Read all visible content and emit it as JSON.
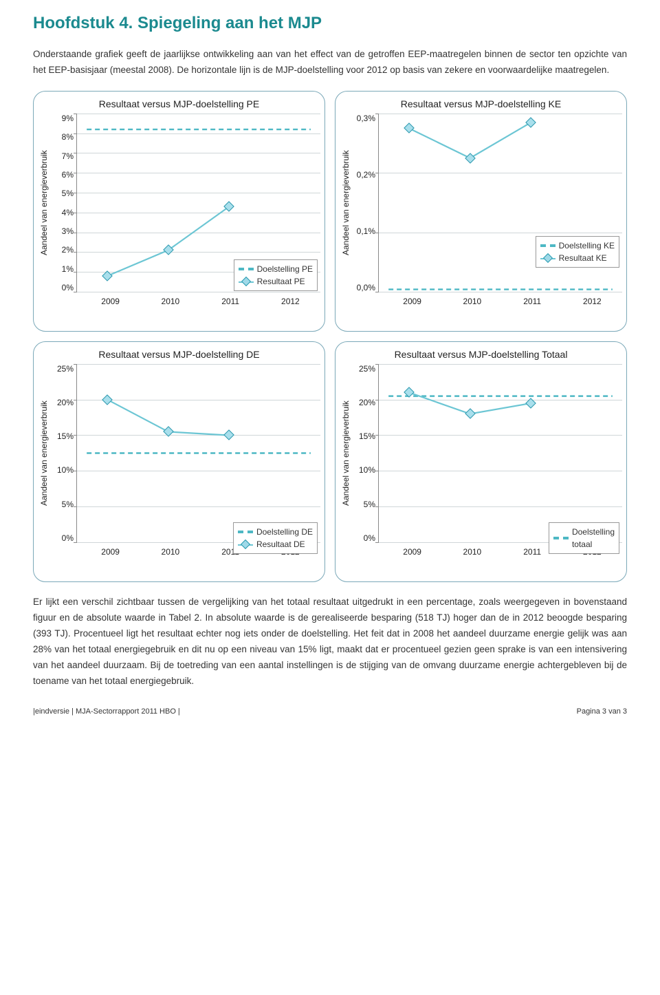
{
  "title": "Hoofdstuk 4. Spiegeling aan het MJP",
  "intro": "Onderstaande grafiek geeft de jaarlijkse ontwikkeling aan van het effect van de getroffen EEP-maatregelen binnen de sector ten opzichte van het EEP-basisjaar (meestal 2008). De horizontale lijn is de MJP-doelstelling voor 2012 op basis van zekere en voorwaardelijke maatregelen.",
  "outro": "Er lijkt een verschil zichtbaar tussen de vergelijking van het totaal resultaat uitgedrukt in een percentage, zoals weergegeven in bovenstaand figuur en de absolute waarde in Tabel 2. In absolute waarde is de gerealiseerde besparing (518 TJ) hoger dan de in 2012 beoogde besparing (393 TJ). Procentueel ligt het resultaat echter nog iets onder de doelstelling. Het feit dat in 2008 het aandeel duurzame energie gelijk was aan 28% van het totaal energiegebruik en dit nu op een niveau van 15% ligt, maakt dat er procentueel gezien geen sprake is van een intensivering van het aandeel duurzaam. Bij de toetreding van een aantal instellingen is de stijging van de omvang duurzame energie achtergebleven bij de toename van het totaal energiegebruik.",
  "ylabel": "Aandeel van energieverbruik",
  "charts": {
    "pe": {
      "title": "Resultaat versus MJP-doelstelling PE",
      "yticks": [
        "9%",
        "8%",
        "7%",
        "6%",
        "5%",
        "4%",
        "3%",
        "2%",
        "1%",
        "0%"
      ],
      "ymin": 0,
      "ymax": 9,
      "xyears": [
        "2009",
        "2010",
        "2011",
        "2012"
      ],
      "target": 8.2,
      "result_x": [
        "2009",
        "2010",
        "2011"
      ],
      "result_y": [
        0.8,
        2.1,
        4.3
      ],
      "legend": [
        "Doelstelling PE",
        "Resultaat PE"
      ],
      "colors": {
        "target": "#4db8c4",
        "line": "#6cc6d4",
        "marker_fill": "#a9dfec",
        "marker_stroke": "#2b97ad"
      }
    },
    "ke": {
      "title": "Resultaat versus MJP-doelstelling KE",
      "yticks": [
        "0,3%",
        "0,2%",
        "0,1%",
        "0,0%"
      ],
      "ymin": 0,
      "ymax": 0.3,
      "xyears": [
        "2009",
        "2010",
        "2011",
        "2012"
      ],
      "target": 0.004,
      "result_x": [
        "2009",
        "2010",
        "2011"
      ],
      "result_y": [
        0.275,
        0.225,
        0.285
      ],
      "legend": [
        "Doelstelling KE",
        "Resultaat KE"
      ],
      "colors": {
        "target": "#4db8c4",
        "line": "#6cc6d4",
        "marker_fill": "#a9dfec",
        "marker_stroke": "#2b97ad"
      }
    },
    "de": {
      "title": "Resultaat versus MJP-doelstelling DE",
      "yticks": [
        "25%",
        "20%",
        "15%",
        "10%",
        "5%",
        "0%"
      ],
      "ymin": 0,
      "ymax": 25,
      "xyears": [
        "2009",
        "2010",
        "2011",
        "2012"
      ],
      "target": 12.5,
      "result_x": [
        "2009",
        "2010",
        "2011"
      ],
      "result_y": [
        20,
        15.5,
        15
      ],
      "legend": [
        "Doelstelling DE",
        "Resultaat DE"
      ],
      "colors": {
        "target": "#4db8c4",
        "line": "#6cc6d4",
        "marker_fill": "#a9dfec",
        "marker_stroke": "#2b97ad"
      }
    },
    "tot": {
      "title": "Resultaat versus MJP-doelstelling Totaal",
      "yticks": [
        "25%",
        "20%",
        "15%",
        "10%",
        "5%",
        "0%"
      ],
      "ymin": 0,
      "ymax": 25,
      "xyears": [
        "2009",
        "2010",
        "2011",
        "2012"
      ],
      "target": 20.5,
      "result_x": [
        "2009",
        "2010",
        "2011"
      ],
      "result_y": [
        21,
        18,
        19.5
      ],
      "legend": [
        "Doelstelling totaal"
      ],
      "legend_two_line": true,
      "colors": {
        "target": "#4db8c4",
        "line": "#6cc6d4",
        "marker_fill": "#a9dfec",
        "marker_stroke": "#2b97ad"
      }
    }
  },
  "footer": {
    "left": "|eindversie | MJA-Sectorrapport 2011  HBO |",
    "right": "Pagina 3 van 3"
  }
}
